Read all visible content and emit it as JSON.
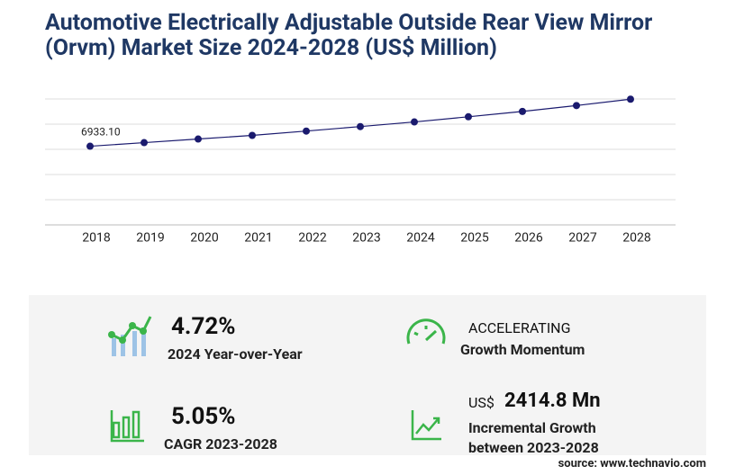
{
  "chart_data": {
    "type": "line",
    "title": "Automotive Electrically Adjustable Outside Rear View Mirror (Orvm) Market Size 2024-2028 (US$ Million)",
    "categories": [
      "2018",
      "2019",
      "2020",
      "2021",
      "2022",
      "2023",
      "2024",
      "2025",
      "2026",
      "2027",
      "2028"
    ],
    "values": [
      6933.1,
      7250,
      7570,
      7890,
      8270,
      8665,
      9074,
      9530,
      10000,
      10520,
      11080
    ],
    "value_labels": [
      "6933.10",
      null,
      null,
      null,
      null,
      null,
      null,
      null,
      null,
      null,
      null
    ],
    "color": "#1a1a6e",
    "ylim": [
      0,
      11100
    ],
    "grid": true
  },
  "stats": {
    "yoy_value": "4.72%",
    "yoy_label": "2024 Year-over-Year",
    "momentum_value": "ACCELERATING",
    "momentum_label": "Growth Momentum",
    "cagr_value": "5.05%",
    "cagr_label": "CAGR 2023-2028",
    "incr_unit": "US$",
    "incr_value": "2414.8 Mn",
    "incr_label_1": "Incremental Growth",
    "incr_label_2": "between 2023-2028"
  },
  "source": "source: www.technavio.com"
}
